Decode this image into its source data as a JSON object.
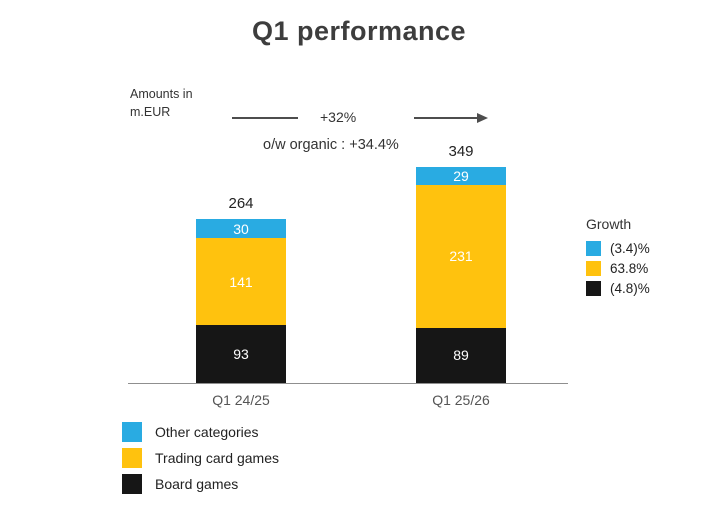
{
  "title": "Q1 performance",
  "units_note": {
    "line1": "Amounts in",
    "line2": "m.EUR"
  },
  "annotation": {
    "arrow_label": "+32%",
    "organic_label": "o/w organic : +34.4%"
  },
  "colors": {
    "blue": "#29ABE2",
    "yellow": "#FFC20E",
    "black": "#161616",
    "title": "#3d3d3d"
  },
  "chart_data": {
    "type": "bar",
    "stacked": true,
    "title": "Q1 performance",
    "ylabel": "Amounts in m.EUR",
    "categories": [
      "Q1 24/25",
      "Q1 25/26"
    ],
    "series": [
      {
        "name": "Other categories",
        "color_key": "blue",
        "values": [
          30,
          29
        ]
      },
      {
        "name": "Trading card games",
        "color_key": "yellow",
        "values": [
          141,
          231
        ]
      },
      {
        "name": "Board games",
        "color_key": "black",
        "values": [
          93,
          89
        ]
      }
    ],
    "totals": [
      264,
      349
    ],
    "growth_label": "+32%",
    "organic_growth_label": "o/w organic : +34.4%",
    "legend_position": "bottom-left",
    "grid": false
  },
  "growth_legend": {
    "title": "Growth",
    "items": [
      {
        "label": "(3.4)%",
        "color_key": "blue"
      },
      {
        "label": "63.8%",
        "color_key": "yellow"
      },
      {
        "label": "(4.8)%",
        "color_key": "black"
      }
    ]
  },
  "legend": {
    "items": [
      {
        "label": "Other categories",
        "color_key": "blue"
      },
      {
        "label": "Trading card games",
        "color_key": "yellow"
      },
      {
        "label": "Board games",
        "color_key": "black"
      }
    ]
  }
}
